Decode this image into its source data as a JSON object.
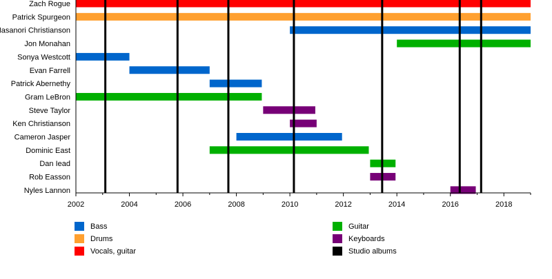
{
  "chart_data": {
    "type": "timeline",
    "xlim": [
      2002,
      2019
    ],
    "x_ticks": [
      2002,
      2004,
      2006,
      2008,
      2010,
      2012,
      2014,
      2016,
      2018
    ],
    "grid": false,
    "legend_placement": "bottom",
    "roles": {
      "Bass": "#0066cc",
      "Drums": "#ffa030",
      "Vocals, guitar": "#ff0000",
      "Guitar": "#00b000",
      "Keyboards": "#770077",
      "Studio albums": "#000000"
    },
    "legend_order": [
      [
        "Bass",
        "Drums",
        "Vocals, guitar"
      ],
      [
        "Guitar",
        "Keyboards",
        "Studio albums"
      ]
    ],
    "members": [
      {
        "name": "Zach Rogue",
        "role": "Vocals, guitar",
        "start": 2002,
        "end": 2019
      },
      {
        "name": "Patrick Spurgeon",
        "role": "Drums",
        "start": 2002,
        "end": 2019
      },
      {
        "name": "Masanori Christianson",
        "role": "Bass",
        "start": 2010,
        "end": 2019
      },
      {
        "name": "Jon Monahan",
        "role": "Guitar",
        "start": 2014,
        "end": 2019
      },
      {
        "name": "Sonya Westcott",
        "role": "Bass",
        "start": 2002,
        "end": 2004
      },
      {
        "name": "Evan Farrell",
        "role": "Bass",
        "start": 2004,
        "end": 2007
      },
      {
        "name": "Patrick Abernethy",
        "role": "Bass",
        "start": 2007,
        "end": 2008.95
      },
      {
        "name": "Gram LeBron",
        "role": "Guitar",
        "start": 2002,
        "end": 2008.95
      },
      {
        "name": "Steve Taylor",
        "role": "Keyboards",
        "start": 2009,
        "end": 2010.95
      },
      {
        "name": "Ken Christianson",
        "role": "Keyboards",
        "start": 2010,
        "end": 2011
      },
      {
        "name": "Cameron Jasper",
        "role": "Bass",
        "start": 2008,
        "end": 2011.95
      },
      {
        "name": "Dominic East",
        "role": "Guitar",
        "start": 2007,
        "end": 2012.95
      },
      {
        "name": "Dan Iead",
        "role": "Guitar",
        "start": 2013,
        "end": 2013.95
      },
      {
        "name": "Rob Easson",
        "role": "Keyboards",
        "start": 2013,
        "end": 2013.95
      },
      {
        "name": "Nyles Lannon",
        "role": "Keyboards",
        "start": 2016,
        "end": 2016.95
      }
    ],
    "studio_albums": [
      2003.1,
      2005.8,
      2007.7,
      2010.15,
      2013.45,
      2016.35,
      2017.15
    ]
  }
}
